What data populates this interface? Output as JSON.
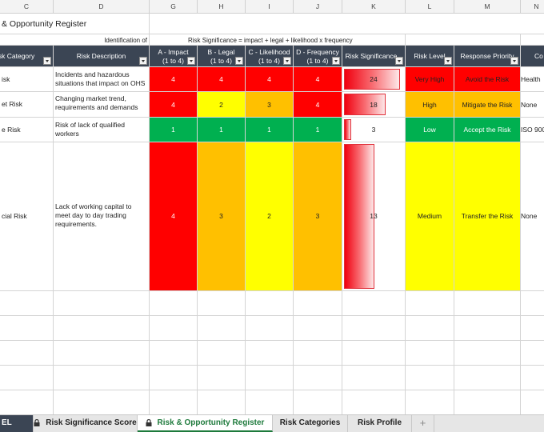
{
  "columns": [
    "C",
    "D",
    "G",
    "H",
    "I",
    "J",
    "K",
    "L",
    "M",
    "N"
  ],
  "title": "& Opportunity Register",
  "identification_label": "Identification of",
  "formula_label": "Risk Significance = impact + legal + likelihood x  frequency",
  "headers": {
    "category": "isk Category",
    "description": "Risk Description",
    "impact": [
      "A - Impact",
      "(1 to 4)"
    ],
    "legal": [
      "B - Legal",
      "(1 to 4)"
    ],
    "likelihood": [
      "C - Likelihood",
      "(1 to 4)"
    ],
    "frequency": [
      "D - Frequency",
      "(1 to 4)"
    ],
    "significance": "Risk Significance",
    "level": "Risk Level",
    "response": "Response Priority",
    "controls": "Co"
  },
  "rows": [
    {
      "category": "isk",
      "description": [
        "Incidents and hazardous",
        "situations that impact on OHS"
      ],
      "impact": "4",
      "legal": "4",
      "likelihood": "4",
      "frequency": "4",
      "significance": "24",
      "significance_fraction": 0.95,
      "level": "Very High",
      "response": "Avoid the Risk",
      "controls": "Health"
    },
    {
      "category": "et Risk",
      "description": [
        "Changing market trend,",
        "requirements and demands"
      ],
      "impact": "4",
      "legal": "2",
      "likelihood": "3",
      "frequency": "4",
      "significance": "18",
      "significance_fraction": 0.7,
      "level": "High",
      "response": "Mitigate the Risk",
      "controls": "None"
    },
    {
      "category": "e Risk",
      "description": [
        "Risk of lack of qualified",
        "workers"
      ],
      "impact": "1",
      "legal": "1",
      "likelihood": "1",
      "frequency": "1",
      "significance": "3",
      "significance_fraction": 0.12,
      "level": "Low",
      "response": "Accept the Risk",
      "controls": "ISO 900"
    },
    {
      "category": "cial Risk",
      "description": [
        "Lack of working capital to",
        "meet day to day trading",
        "requirements."
      ],
      "impact": "4",
      "legal": "3",
      "likelihood": "2",
      "frequency": "3",
      "significance": "13",
      "significance_fraction": 0.52,
      "level": "Medium",
      "response": "Transfer the Risk",
      "controls": "None"
    }
  ],
  "tabs": [
    {
      "label": "EL",
      "locked": false
    },
    {
      "label": "Risk Significance Score",
      "locked": true
    },
    {
      "label": "Risk & Opportunity Register",
      "locked": true,
      "active": true
    },
    {
      "label": "Risk Categories",
      "locked": false
    },
    {
      "label": "Risk Profile",
      "locked": false
    },
    {
      "label": "+",
      "locked": false
    }
  ],
  "colors": {
    "header_bg": "#3b4554",
    "very_high": "#ff0000",
    "high": "#ffc000",
    "medium": "#ffff00",
    "low": "#00b050",
    "active_tab": "#1e7a3c"
  }
}
